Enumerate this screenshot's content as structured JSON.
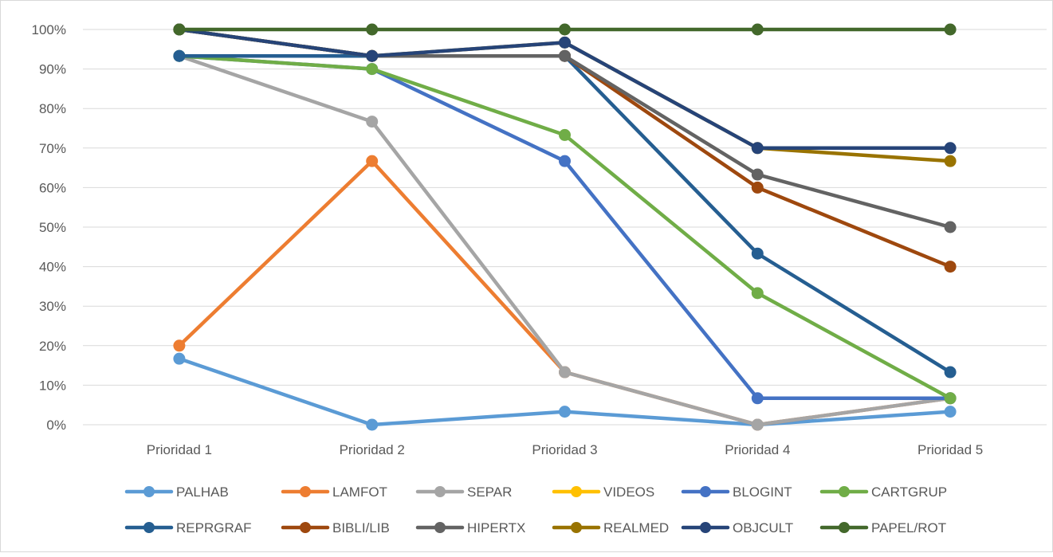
{
  "chart_data": {
    "type": "line",
    "title": "",
    "xlabel": "",
    "ylabel": "",
    "categories": [
      "Prioridad 1",
      "Prioridad 2",
      "Prioridad 3",
      "Prioridad 4",
      "Prioridad 5"
    ],
    "ylim": [
      0,
      100
    ],
    "yticks": [
      "0%",
      "10%",
      "20%",
      "30%",
      "40%",
      "50%",
      "60%",
      "70%",
      "80%",
      "90%",
      "100%"
    ],
    "grid": true,
    "legend_position": "bottom",
    "series": [
      {
        "name": "PALHAB",
        "color": "#5b9bd5",
        "values": [
          16.7,
          0,
          3.3,
          0,
          3.3
        ]
      },
      {
        "name": "LAMFOT",
        "color": "#ed7d31",
        "values": [
          20,
          66.7,
          13.3,
          0,
          6.7
        ]
      },
      {
        "name": "SEPAR",
        "color": "#a5a5a5",
        "values": [
          93.3,
          76.7,
          13.3,
          0,
          6.7
        ]
      },
      {
        "name": "VIDEOS",
        "color": "#ffc000",
        "values": [
          null,
          null,
          null,
          null,
          null
        ]
      },
      {
        "name": "BLOGINT",
        "color": "#4472c4",
        "values": [
          93.3,
          90,
          66.7,
          6.7,
          6.7
        ]
      },
      {
        "name": "CARTGRUP",
        "color": "#70ad47",
        "values": [
          93.3,
          90,
          73.3,
          33.3,
          6.7
        ]
      },
      {
        "name": "REPRGRAF",
        "color": "#255e91",
        "values": [
          93.3,
          93.3,
          93.3,
          43.3,
          13.3
        ]
      },
      {
        "name": "BIBLI/LIB",
        "color": "#9e480e",
        "values": [
          100,
          93.3,
          93.3,
          60,
          40
        ]
      },
      {
        "name": "HIPERTX",
        "color": "#636363",
        "values": [
          100,
          93.3,
          93.3,
          63.3,
          50
        ]
      },
      {
        "name": "REALMED",
        "color": "#997300",
        "values": [
          100,
          93.3,
          96.7,
          70,
          66.7
        ]
      },
      {
        "name": "OBJCULT",
        "color": "#264478",
        "values": [
          100,
          93.3,
          96.7,
          70,
          70
        ]
      },
      {
        "name": "PAPEL/ROT",
        "color": "#43682b",
        "values": [
          100,
          100,
          100,
          100,
          100
        ]
      }
    ]
  }
}
